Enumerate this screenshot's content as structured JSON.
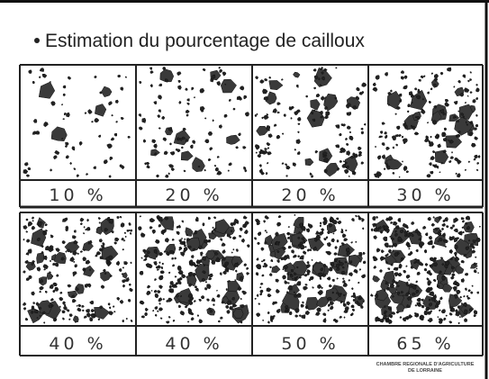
{
  "title": "Estimation du pourcentage de cailloux",
  "panels": [
    {
      "label": "10 %"
    },
    {
      "label": "20 %"
    },
    {
      "label": "20 %"
    },
    {
      "label": "30 %"
    },
    {
      "label": "40 %"
    },
    {
      "label": "40 %"
    },
    {
      "label": "50 %"
    },
    {
      "label": "65 %"
    }
  ],
  "credit": [
    "CHAMBRE REGIONALE D'AGRICULTURE",
    "DE LORRAINE"
  ]
}
